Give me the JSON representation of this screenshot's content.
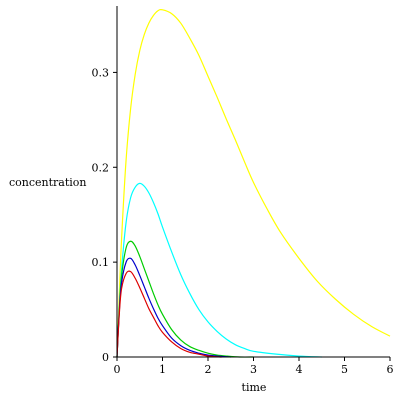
{
  "chart_data": {
    "type": "line",
    "title": "",
    "xlabel": "time",
    "ylabel": "concentration",
    "xlim": [
      0,
      6
    ],
    "ylim": [
      0,
      0.37
    ],
    "x_ticks": [
      0,
      1,
      2,
      3,
      4,
      5,
      6
    ],
    "x_tick_labels": [
      "0",
      "1",
      "2",
      "3",
      "4",
      "5",
      "6"
    ],
    "y_ticks": [
      0,
      0.1,
      0.2,
      0.3
    ],
    "y_tick_labels": [
      "0",
      "0.1",
      "0.2",
      "0.3"
    ],
    "grid": false,
    "legend": "none",
    "series": [
      {
        "color": "#ffff00",
        "x": [
          0,
          0.05,
          0.1,
          0.2,
          0.3,
          0.4,
          0.5,
          0.6,
          0.7,
          0.8,
          0.9,
          1.0,
          1.2,
          1.4,
          1.6,
          1.8,
          2.0,
          2.2,
          2.4,
          2.6,
          2.8,
          3.0,
          3.3,
          3.6,
          4.0,
          4.4,
          4.8,
          5.2,
          5.6,
          6.0
        ],
        "y": [
          0,
          0.065,
          0.124,
          0.208,
          0.262,
          0.298,
          0.323,
          0.34,
          0.352,
          0.36,
          0.365,
          0.366,
          0.362,
          0.352,
          0.336,
          0.318,
          0.296,
          0.274,
          0.251,
          0.229,
          0.206,
          0.184,
          0.156,
          0.131,
          0.104,
          0.08,
          0.061,
          0.045,
          0.032,
          0.022
        ]
      },
      {
        "color": "#00ffff",
        "x": [
          0,
          0.05,
          0.1,
          0.2,
          0.3,
          0.4,
          0.5,
          0.6,
          0.7,
          0.8,
          0.9,
          1.0,
          1.2,
          1.4,
          1.6,
          1.8,
          2.0,
          2.2,
          2.4,
          2.6,
          2.8,
          3.0,
          3.5,
          4.0,
          4.5
        ],
        "y": [
          0,
          0.052,
          0.092,
          0.142,
          0.168,
          0.179,
          0.183,
          0.18,
          0.173,
          0.163,
          0.151,
          0.137,
          0.111,
          0.087,
          0.067,
          0.05,
          0.037,
          0.027,
          0.019,
          0.013,
          0.009,
          0.006,
          0.003,
          0.001,
          0.0
        ]
      },
      {
        "color": "#00cc00",
        "x": [
          0,
          0.05,
          0.1,
          0.2,
          0.3,
          0.4,
          0.5,
          0.6,
          0.7,
          0.8,
          0.9,
          1.0,
          1.2,
          1.4,
          1.6,
          1.8,
          2.0,
          2.2,
          2.4,
          2.7,
          3.0
        ],
        "y": [
          0,
          0.05,
          0.085,
          0.115,
          0.122,
          0.117,
          0.106,
          0.093,
          0.08,
          0.067,
          0.055,
          0.045,
          0.029,
          0.018,
          0.011,
          0.007,
          0.004,
          0.002,
          0.001,
          0.0,
          0.0
        ]
      },
      {
        "color": "#0000cc",
        "x": [
          0,
          0.05,
          0.1,
          0.2,
          0.3,
          0.4,
          0.5,
          0.6,
          0.7,
          0.8,
          0.9,
          1.0,
          1.2,
          1.4,
          1.6,
          1.8,
          2.0,
          2.2,
          2.5
        ],
        "y": [
          0,
          0.048,
          0.078,
          0.1,
          0.104,
          0.097,
          0.086,
          0.074,
          0.062,
          0.051,
          0.041,
          0.033,
          0.02,
          0.012,
          0.007,
          0.004,
          0.002,
          0.001,
          0.0
        ]
      },
      {
        "color": "#dd0000",
        "x": [
          0,
          0.05,
          0.1,
          0.2,
          0.3,
          0.4,
          0.5,
          0.6,
          0.7,
          0.8,
          0.9,
          1.0,
          1.2,
          1.4,
          1.6,
          1.8,
          2.0,
          2.3
        ],
        "y": [
          0,
          0.045,
          0.072,
          0.088,
          0.09,
          0.083,
          0.073,
          0.062,
          0.051,
          0.042,
          0.033,
          0.026,
          0.016,
          0.009,
          0.005,
          0.003,
          0.001,
          0.0
        ]
      }
    ]
  }
}
